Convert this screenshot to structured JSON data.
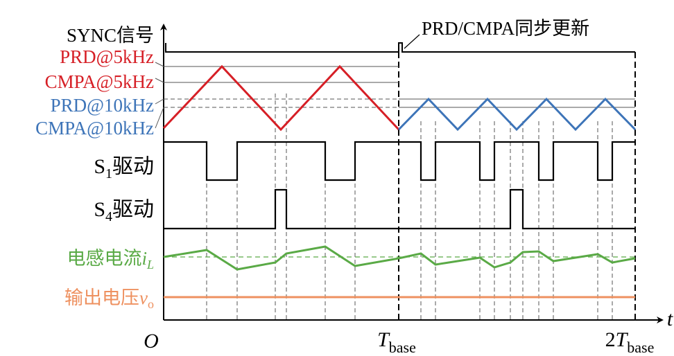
{
  "labels": {
    "sync": "SYNC信号",
    "prd5": "PRD@5kHz",
    "cmpa5": "CMPA@5kHz",
    "prd10": "PRD@10kHz",
    "cmpa10": "CMPA@10kHz",
    "s1_sub": "1",
    "s4_sub": "4",
    "drive": "驱动",
    "il_prefix": "电感电流",
    "il_var": "i",
    "il_sub": "L",
    "vo_prefix": "输出电压",
    "vo_var": "v",
    "vo_sub": "o",
    "update_note": "PRD/CMPA同步更新",
    "origin": "O",
    "t_axis": "t",
    "tbase_var": "T",
    "tbase_sub": "base",
    "tbase2_coef": "2",
    "s_letter": "S"
  },
  "colors": {
    "red": "#d61f26",
    "blue": "#3d74b8",
    "green": "#5aaa46",
    "orange": "#ee9160",
    "black": "#000000"
  }
}
